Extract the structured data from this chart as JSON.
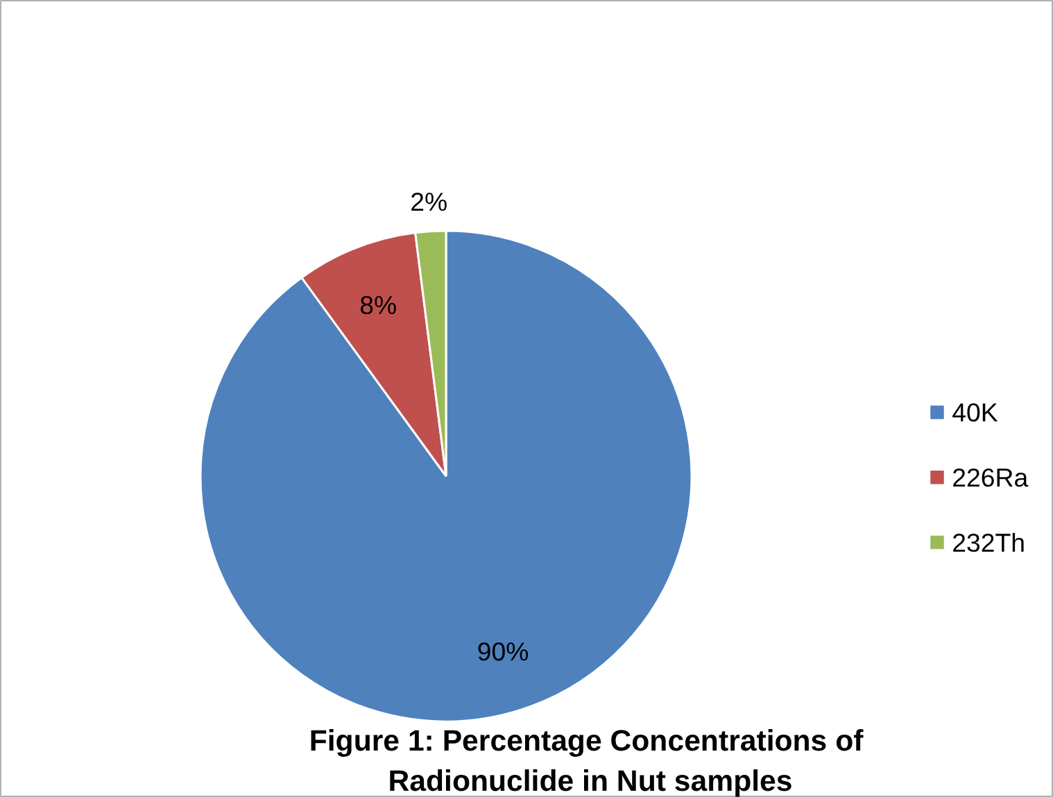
{
  "chart_data": {
    "type": "pie",
    "title": "Figure 1:  Percentage Concentrations of\nRadionuclide in Nut samples",
    "categories": [
      "40K",
      "226Ra",
      "232Th"
    ],
    "values": [
      90,
      8,
      2
    ],
    "colors": [
      "#4f81bd",
      "#c0504d",
      "#9bbb59"
    ],
    "value_labels": [
      "90%",
      "8%",
      "2%"
    ],
    "legend": "right"
  }
}
